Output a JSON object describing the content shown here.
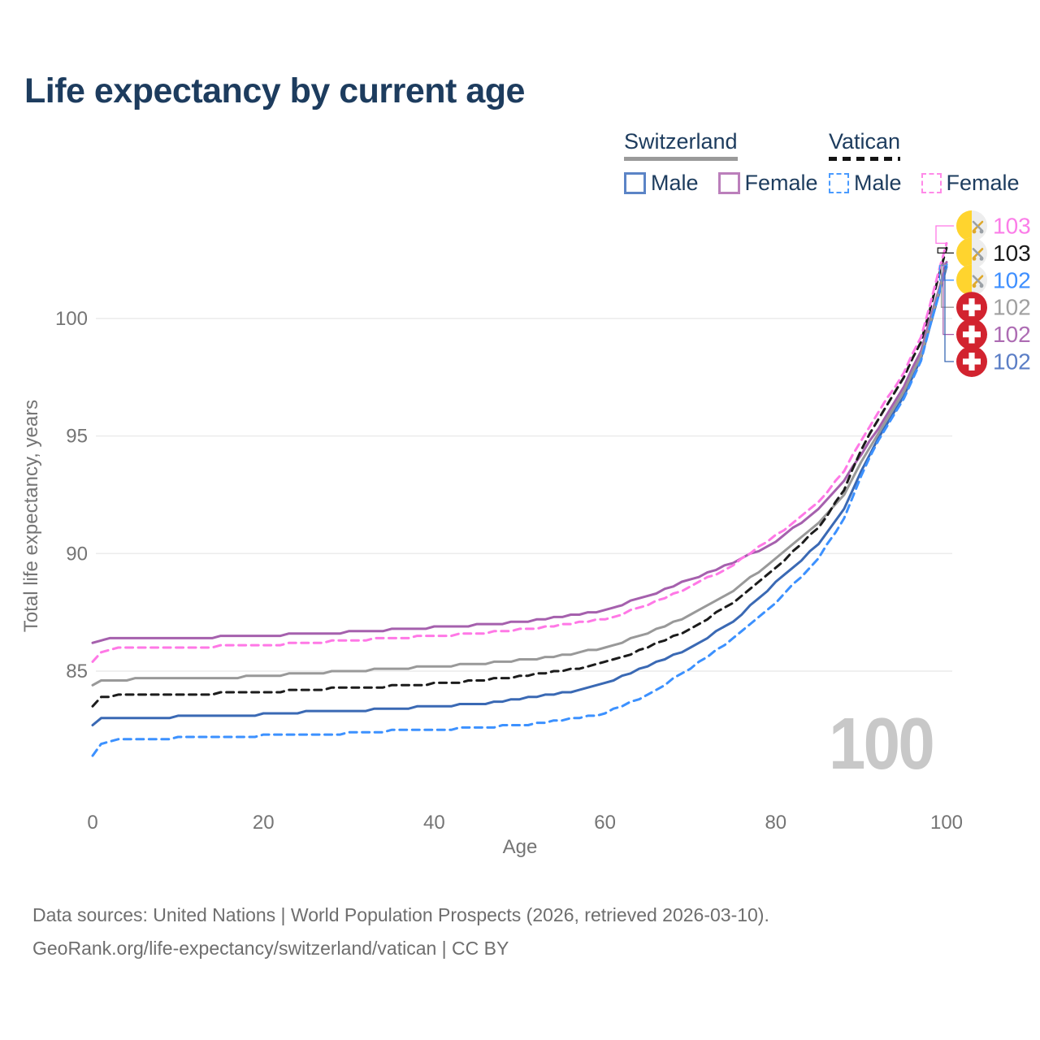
{
  "title": {
    "text": "Life expectancy by current age",
    "color": "#1d3c5e"
  },
  "legend": {
    "text_color": "#1d3c5e",
    "groups": [
      {
        "label": "Switzerland",
        "underline_style": "solid",
        "underline_color": "#9a9a9a",
        "items": [
          {
            "label": "Male",
            "swatch_color": "#5b84c6",
            "swatch_style": "solid"
          },
          {
            "label": "Female",
            "swatch_color": "#bb7fbb",
            "swatch_style": "solid"
          }
        ]
      },
      {
        "label": "Vatican",
        "underline_style": "dashed",
        "underline_color": "#141414",
        "items": [
          {
            "label": "Male",
            "swatch_color": "#4a9bff",
            "swatch_style": "dashed"
          },
          {
            "label": "Female",
            "swatch_color": "#ff8ae8",
            "swatch_style": "dashed"
          }
        ]
      }
    ]
  },
  "chart_data": {
    "type": "line",
    "title": "Life expectancy by current age",
    "xlabel": "Age",
    "ylabel": "Total life expectancy, years",
    "x_ticks": [
      0,
      20,
      40,
      60,
      80,
      100
    ],
    "y_ticks": [
      85,
      90,
      95,
      100
    ],
    "xlim": [
      0,
      100
    ],
    "ylim": [
      81,
      103.5
    ],
    "grid": "horizontal-only",
    "legend_position": "top-right",
    "ages": [
      0,
      1,
      3,
      5,
      10,
      15,
      20,
      25,
      30,
      35,
      40,
      45,
      50,
      55,
      60,
      65,
      70,
      75,
      80,
      85,
      88,
      90,
      92,
      95,
      97,
      100
    ],
    "series": [
      {
        "name": "Switzerland Male",
        "country": "Switzerland",
        "sex": "Male",
        "style": "solid",
        "color": "#3a69b4",
        "values": [
          82.7,
          82.95,
          83.0,
          83.0,
          83.05,
          83.1,
          83.15,
          83.25,
          83.3,
          83.4,
          83.5,
          83.6,
          83.8,
          84.05,
          84.5,
          85.2,
          86.0,
          87.1,
          88.75,
          90.4,
          91.9,
          93.5,
          94.9,
          96.7,
          98.3,
          102.2
        ]
      },
      {
        "name": "Switzerland Female",
        "country": "Switzerland",
        "sex": "Female",
        "style": "solid",
        "color": "#a560ad",
        "values": [
          86.15,
          86.3,
          86.4,
          86.4,
          86.4,
          86.45,
          86.5,
          86.6,
          86.65,
          86.75,
          86.85,
          86.95,
          87.1,
          87.3,
          87.6,
          88.2,
          88.9,
          89.6,
          90.5,
          91.9,
          93.1,
          94.2,
          95.3,
          97.1,
          98.6,
          102.35
        ]
      },
      {
        "name": "Switzerland Both sexes",
        "country": "Switzerland",
        "sex": "Both sexes",
        "style": "solid",
        "color": "#999999",
        "values": [
          84.35,
          84.55,
          84.6,
          84.65,
          84.65,
          84.7,
          84.8,
          84.9,
          85.0,
          85.1,
          85.2,
          85.3,
          85.45,
          85.65,
          86.0,
          86.6,
          87.4,
          88.4,
          89.8,
          91.3,
          92.5,
          93.9,
          95.1,
          96.9,
          98.4,
          102.3
        ]
      },
      {
        "name": "Vatican Male",
        "country": "Vatican",
        "sex": "Male",
        "style": "dashed",
        "color": "#3c91ff",
        "values": [
          81.4,
          81.9,
          82.05,
          82.1,
          82.15,
          82.2,
          82.25,
          82.3,
          82.35,
          82.45,
          82.5,
          82.6,
          82.7,
          82.9,
          83.2,
          84.0,
          85.1,
          86.4,
          87.9,
          89.8,
          91.5,
          93.3,
          94.8,
          96.6,
          98.2,
          102.25
        ]
      },
      {
        "name": "Vatican Both sexes",
        "country": "Vatican",
        "sex": "Both sexes",
        "style": "dashed",
        "color": "#1c1c1c",
        "values": [
          83.5,
          83.85,
          84.0,
          84.0,
          84.0,
          84.05,
          84.1,
          84.2,
          84.3,
          84.35,
          84.45,
          84.6,
          84.75,
          85.0,
          85.35,
          86.0,
          86.8,
          87.9,
          89.35,
          91.1,
          92.7,
          94.4,
          95.7,
          97.5,
          99.0,
          103.0
        ]
      },
      {
        "name": "Vatican Female",
        "country": "Vatican",
        "sex": "Female",
        "style": "dashed",
        "color": "#ff78e6",
        "values": [
          85.4,
          85.8,
          85.95,
          86.0,
          86.0,
          86.05,
          86.1,
          86.2,
          86.3,
          86.4,
          86.5,
          86.6,
          86.75,
          86.95,
          87.2,
          87.8,
          88.6,
          89.5,
          90.75,
          92.2,
          93.5,
          94.8,
          96.0,
          97.7,
          99.2,
          103.2
        ]
      }
    ]
  },
  "end_labels": [
    {
      "text": "103",
      "color": "#fb7de8",
      "flag": "vatican",
      "series": "Vatican Female"
    },
    {
      "text": "103",
      "color": "#1a1a1a",
      "flag": "vatican",
      "series": "Vatican Both sexes"
    },
    {
      "text": "102",
      "color": "#3e8fff",
      "flag": "vatican",
      "series": "Vatican Male"
    },
    {
      "text": "102",
      "color": "#a0a0a0",
      "flag": "switzerland",
      "series": "Switzerland Both sexes"
    },
    {
      "text": "102",
      "color": "#ad6cb3",
      "flag": "switzerland",
      "series": "Switzerland Female"
    },
    {
      "text": "102",
      "color": "#5b7ec6",
      "flag": "switzerland",
      "series": "Switzerland Male"
    }
  ],
  "flags": {
    "vatican": {
      "left_half": "#ffd42e",
      "right_half": "#ededed",
      "key_gold": "#dfa92c",
      "key_gray": "#9aa0a6"
    },
    "switzerland": {
      "background": "#d2232f",
      "cross": "#ffffff"
    }
  },
  "axis": {
    "tick_color": "#757575",
    "grid_color": "#ececec"
  },
  "watermark": {
    "text": "100",
    "color": "#c8c8c8"
  },
  "source": {
    "line1": "Data sources: United Nations | World Population Prospects (2026, retrieved 2026-03-10).",
    "line2": "GeoRank.org/life-expectancy/switzerland/vatican | CC BY",
    "color": "#6e6e6e"
  }
}
